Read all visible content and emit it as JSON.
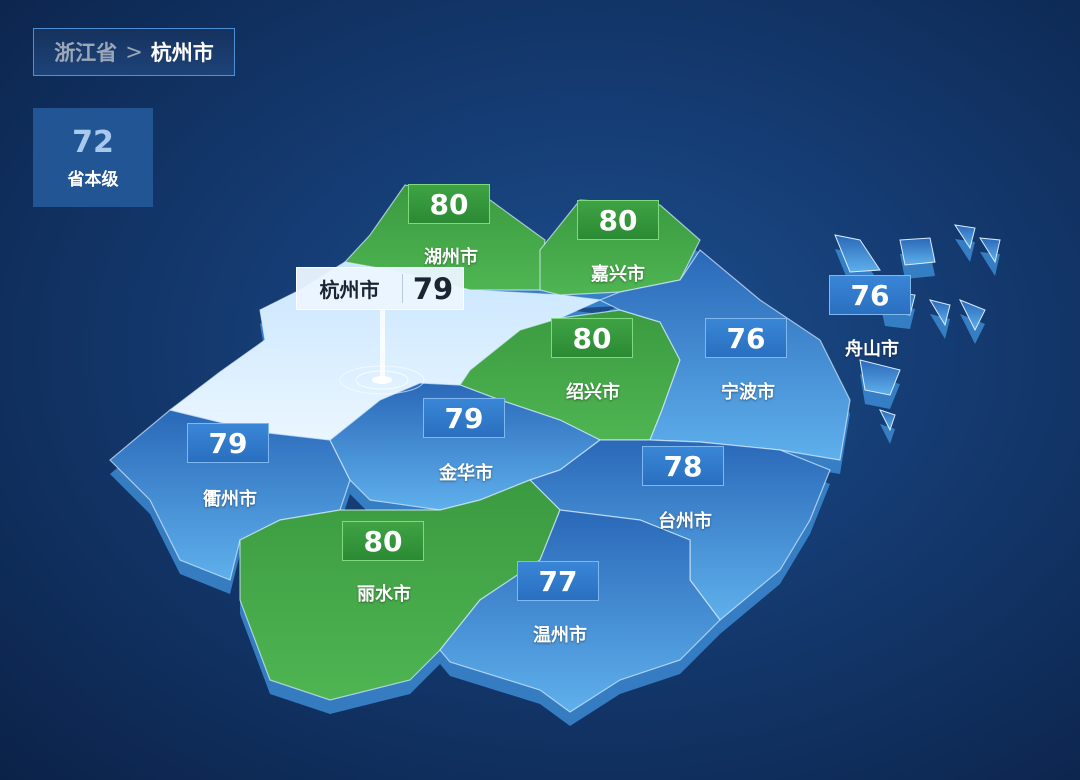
{
  "breadcrumb": {
    "province": "浙江省",
    "separator": ">",
    "city": "杭州市"
  },
  "province_level": {
    "value": "72",
    "label": "省本级"
  },
  "colors": {
    "green": "#3fa344",
    "blue": "#2f78cc",
    "selected": "#dcefff",
    "background": "#143a70"
  },
  "selected_city": {
    "name": "杭州市",
    "value": "79"
  },
  "regions": [
    {
      "id": "huzhou",
      "name": "湖州市",
      "value": "80",
      "color": "green"
    },
    {
      "id": "jiaxing",
      "name": "嘉兴市",
      "value": "80",
      "color": "green"
    },
    {
      "id": "shaoxing",
      "name": "绍兴市",
      "value": "80",
      "color": "green"
    },
    {
      "id": "ningbo",
      "name": "宁波市",
      "value": "76",
      "color": "blue"
    },
    {
      "id": "zhoushan",
      "name": "舟山市",
      "value": "76",
      "color": "blue"
    },
    {
      "id": "quzhou",
      "name": "衢州市",
      "value": "79",
      "color": "blue"
    },
    {
      "id": "jinhua",
      "name": "金华市",
      "value": "79",
      "color": "blue"
    },
    {
      "id": "taizhou",
      "name": "台州市",
      "value": "78",
      "color": "blue"
    },
    {
      "id": "lishui",
      "name": "丽水市",
      "value": "80",
      "color": "green"
    },
    {
      "id": "wenzhou",
      "name": "温州市",
      "value": "77",
      "color": "blue"
    }
  ]
}
